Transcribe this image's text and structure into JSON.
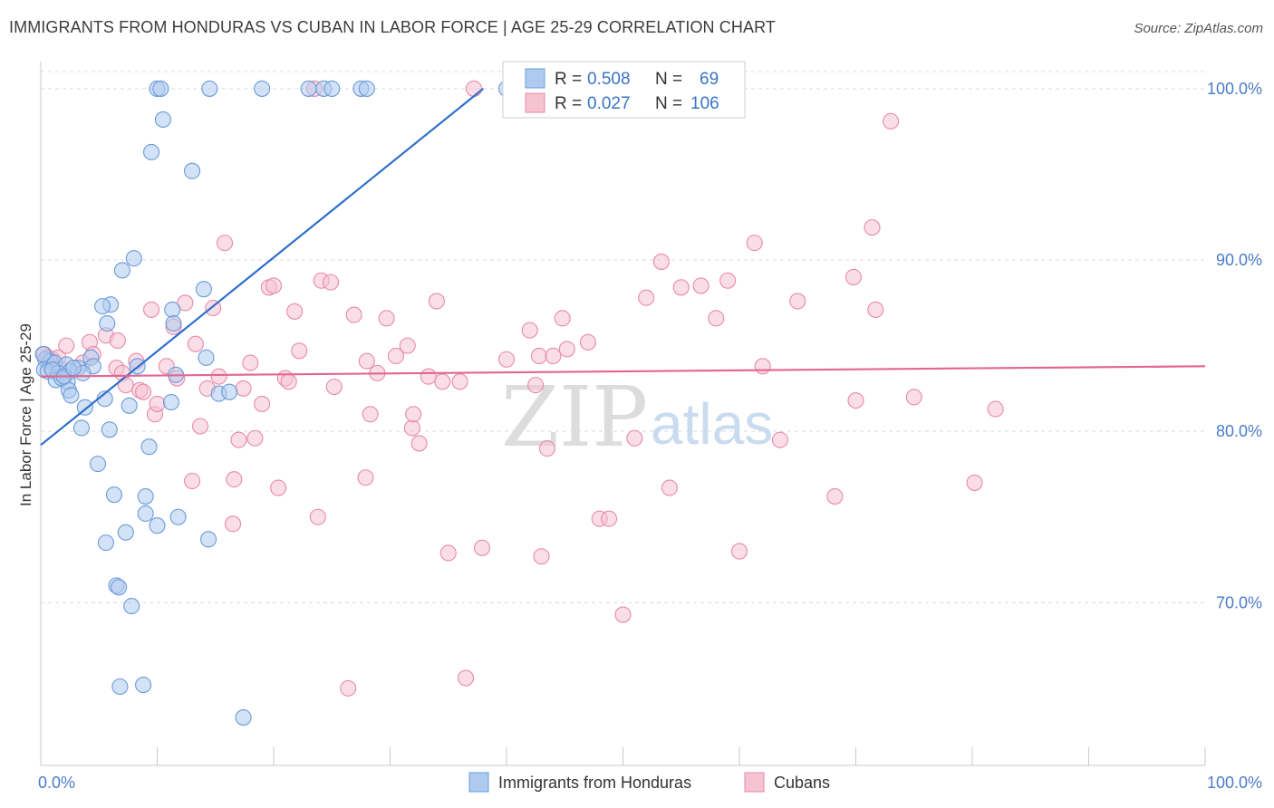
{
  "title": "IMMIGRANTS FROM HONDURAS VS CUBAN IN LABOR FORCE | AGE 25-29 CORRELATION CHART",
  "source": "Source: ZipAtlas.com",
  "watermark": {
    "zip": "ZIP",
    "atlas": "atlas"
  },
  "chart_data": {
    "type": "scatter",
    "title": "IMMIGRANTS FROM HONDURAS VS CUBAN IN LABOR FORCE | AGE 25-29 CORRELATION CHART",
    "xlabel": "",
    "ylabel": "In Labor Force | Age 25-29",
    "xlim": [
      0,
      100
    ],
    "ylim": [
      60.5,
      101
    ],
    "x_tick_labels": [
      "0.0%",
      "100.0%"
    ],
    "y_ticks": [
      70,
      80,
      90,
      100
    ],
    "y_tick_labels": [
      "70.0%",
      "80.0%",
      "90.0%",
      "100.0%"
    ],
    "legend": {
      "position": "top-center",
      "entries": [
        {
          "r_label": "R =",
          "r_value": "0.508",
          "n_label": "N =",
          "n_value": "69"
        },
        {
          "r_label": "R =",
          "r_value": "0.027",
          "n_label": "N =",
          "n_value": "106"
        }
      ]
    },
    "series": [
      {
        "name": "Immigrants from Honduras",
        "color": "#6a9bd8",
        "fill": "#aecbef",
        "line_color": "#2f6fcc",
        "trend": {
          "x": [
            0,
            38
          ],
          "y": [
            79.2,
            100
          ]
        },
        "points": [
          [
            10,
            100
          ],
          [
            10.3,
            100
          ],
          [
            14.5,
            100
          ],
          [
            19,
            100
          ],
          [
            23,
            100
          ],
          [
            24.3,
            100
          ],
          [
            25,
            100
          ],
          [
            27.5,
            100
          ],
          [
            28,
            100
          ],
          [
            40,
            100
          ],
          [
            10.5,
            98.2
          ],
          [
            9.5,
            96.3
          ],
          [
            13,
            95.2
          ],
          [
            8,
            90.1
          ],
          [
            7,
            89.4
          ],
          [
            14,
            88.3
          ],
          [
            6,
            87.4
          ],
          [
            5.3,
            87.3
          ],
          [
            11.3,
            87.1
          ],
          [
            5.7,
            86.3
          ],
          [
            11.4,
            86.3
          ],
          [
            0.4,
            84.2
          ],
          [
            0.8,
            84.1
          ],
          [
            1.2,
            84.0
          ],
          [
            2.2,
            83.9
          ],
          [
            4.3,
            84.3
          ],
          [
            14.2,
            84.3
          ],
          [
            8.3,
            83.8
          ],
          [
            3.2,
            83.7
          ],
          [
            4.5,
            83.8
          ],
          [
            0.3,
            83.6
          ],
          [
            0.6,
            83.5
          ],
          [
            1.5,
            83.4
          ],
          [
            2.5,
            83.5
          ],
          [
            3.6,
            83.4
          ],
          [
            11.6,
            83.3
          ],
          [
            1.3,
            83.0
          ],
          [
            2.3,
            82.9
          ],
          [
            1.8,
            83.1
          ],
          [
            2.4,
            82.4
          ],
          [
            2.6,
            82.1
          ],
          [
            15.3,
            82.2
          ],
          [
            16.2,
            82.3
          ],
          [
            5.5,
            81.9
          ],
          [
            3.8,
            81.4
          ],
          [
            7.6,
            81.5
          ],
          [
            11.2,
            81.7
          ],
          [
            3.5,
            80.2
          ],
          [
            5.9,
            80.1
          ],
          [
            9.3,
            79.1
          ],
          [
            4.9,
            78.1
          ],
          [
            6.3,
            76.3
          ],
          [
            9.0,
            76.2
          ],
          [
            9.0,
            75.2
          ],
          [
            11.8,
            75.0
          ],
          [
            10.0,
            74.5
          ],
          [
            7.3,
            74.1
          ],
          [
            5.6,
            73.5
          ],
          [
            14.4,
            73.7
          ],
          [
            6.5,
            71.0
          ],
          [
            6.7,
            70.9
          ],
          [
            7.8,
            69.8
          ],
          [
            6.8,
            65.1
          ],
          [
            8.8,
            65.2
          ],
          [
            17.4,
            63.3
          ],
          [
            0.2,
            84.5
          ],
          [
            1.0,
            83.6
          ],
          [
            2.0,
            83.2
          ],
          [
            2.8,
            83.7
          ]
        ]
      },
      {
        "name": "Cubans",
        "color": "#e88aa8",
        "fill": "#f6c3d3",
        "line_color": "#e26692",
        "trend": {
          "x": [
            0,
            100
          ],
          "y": [
            83.2,
            83.8
          ]
        },
        "points": [
          [
            0.3,
            84.5
          ],
          [
            0.6,
            84.3
          ],
          [
            1.0,
            84.2
          ],
          [
            1.5,
            84.3
          ],
          [
            0.8,
            83.8
          ],
          [
            1.7,
            83.6
          ],
          [
            2.2,
            85.0
          ],
          [
            3.6,
            84.0
          ],
          [
            4.2,
            85.2
          ],
          [
            4.5,
            84.5
          ],
          [
            5.6,
            85.6
          ],
          [
            6.5,
            83.7
          ],
          [
            6.6,
            85.3
          ],
          [
            8.2,
            84.1
          ],
          [
            7.0,
            83.4
          ],
          [
            7.3,
            82.7
          ],
          [
            8.5,
            82.4
          ],
          [
            8.8,
            82.3
          ],
          [
            9.5,
            87.1
          ],
          [
            9.8,
            81.0
          ],
          [
            10.0,
            81.6
          ],
          [
            10.8,
            83.8
          ],
          [
            11.4,
            86.1
          ],
          [
            11.7,
            83.1
          ],
          [
            12.4,
            87.5
          ],
          [
            13.0,
            77.1
          ],
          [
            13.3,
            85.1
          ],
          [
            13.7,
            80.3
          ],
          [
            14.3,
            82.5
          ],
          [
            14.8,
            87.2
          ],
          [
            15.3,
            83.2
          ],
          [
            15.8,
            91.0
          ],
          [
            16.5,
            74.6
          ],
          [
            16.6,
            77.2
          ],
          [
            17.0,
            79.5
          ],
          [
            17.4,
            82.5
          ],
          [
            18.0,
            84.0
          ],
          [
            18.4,
            79.6
          ],
          [
            19.0,
            81.6
          ],
          [
            19.6,
            88.4
          ],
          [
            20.0,
            88.5
          ],
          [
            20.4,
            76.7
          ],
          [
            21.0,
            83.1
          ],
          [
            21.3,
            82.9
          ],
          [
            21.8,
            87.0
          ],
          [
            22.2,
            84.7
          ],
          [
            23.5,
            100
          ],
          [
            23.8,
            75.0
          ],
          [
            24.1,
            88.8
          ],
          [
            24.9,
            88.7
          ],
          [
            25.2,
            82.6
          ],
          [
            26.4,
            65.0
          ],
          [
            26.9,
            86.8
          ],
          [
            27.9,
            77.3
          ],
          [
            28.0,
            84.1
          ],
          [
            28.3,
            81.0
          ],
          [
            28.9,
            83.4
          ],
          [
            29.7,
            86.6
          ],
          [
            30.5,
            84.4
          ],
          [
            31.5,
            85.0
          ],
          [
            31.9,
            80.2
          ],
          [
            32.0,
            81.0
          ],
          [
            32.5,
            79.3
          ],
          [
            33.3,
            83.2
          ],
          [
            34.0,
            87.6
          ],
          [
            34.5,
            82.9
          ],
          [
            35.0,
            72.9
          ],
          [
            36.0,
            82.9
          ],
          [
            36.5,
            65.6
          ],
          [
            37.2,
            100
          ],
          [
            37.9,
            73.2
          ],
          [
            40.0,
            84.2
          ],
          [
            42.0,
            85.9
          ],
          [
            42.5,
            82.7
          ],
          [
            42.8,
            84.4
          ],
          [
            43.0,
            72.7
          ],
          [
            43.5,
            79.0
          ],
          [
            44.0,
            84.4
          ],
          [
            44.8,
            86.6
          ],
          [
            45.2,
            84.8
          ],
          [
            47.0,
            85.2
          ],
          [
            48.0,
            74.9
          ],
          [
            48.8,
            74.9
          ],
          [
            50.0,
            69.3
          ],
          [
            51.0,
            79.6
          ],
          [
            52.0,
            87.8
          ],
          [
            53.3,
            89.9
          ],
          [
            54.0,
            76.7
          ],
          [
            55.0,
            88.4
          ],
          [
            56.7,
            88.5
          ],
          [
            58.0,
            86.6
          ],
          [
            59.0,
            88.8
          ],
          [
            60.0,
            73.0
          ],
          [
            61.3,
            91.0
          ],
          [
            62.0,
            83.8
          ],
          [
            63.5,
            79.5
          ],
          [
            65.0,
            87.6
          ],
          [
            68.2,
            76.2
          ],
          [
            69.8,
            89.0
          ],
          [
            70.0,
            81.8
          ],
          [
            71.4,
            91.9
          ],
          [
            71.7,
            87.1
          ],
          [
            73.0,
            98.1
          ],
          [
            75.0,
            82.0
          ],
          [
            80.2,
            77.0
          ],
          [
            82.0,
            81.3
          ]
        ]
      }
    ]
  }
}
